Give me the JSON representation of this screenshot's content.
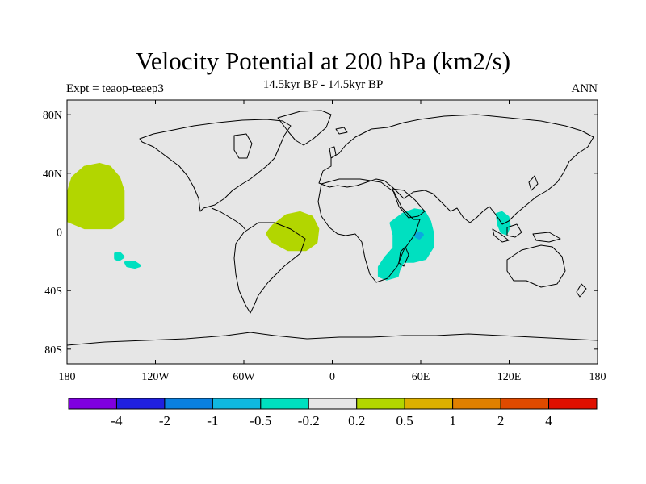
{
  "title": "Velocity Potential at 200 hPa (km2/s)",
  "subtitle": "14.5kyr BP - 14.5kyr BP",
  "left_label": "Expt = teaop-teaep3",
  "right_label": "ANN",
  "map": {
    "projection": "cylindrical-equidistant",
    "background_color": "#e6e6e6",
    "coastline_color": "#000000",
    "lon_range": [
      -180,
      180
    ],
    "lat_range": [
      -90,
      90
    ],
    "x_ticks": [
      {
        "value": -180,
        "label": "180"
      },
      {
        "value": -120,
        "label": "120W"
      },
      {
        "value": -60,
        "label": "60W"
      },
      {
        "value": 0,
        "label": "0"
      },
      {
        "value": 60,
        "label": "60E"
      },
      {
        "value": 120,
        "label": "120E"
      },
      {
        "value": 180,
        "label": "180"
      }
    ],
    "y_ticks": [
      {
        "value": 80,
        "label": "80N"
      },
      {
        "value": 40,
        "label": "40N"
      },
      {
        "value": 0,
        "label": "0"
      },
      {
        "value": -40,
        "label": "40S"
      },
      {
        "value": -80,
        "label": "80S"
      }
    ],
    "anomalies": [
      {
        "name": "north-pacific-positive",
        "color": "#b2d600",
        "points": [
          [
            -176,
            37
          ],
          [
            -168,
            44
          ],
          [
            -158,
            46
          ],
          [
            -151,
            44
          ],
          [
            -145,
            37
          ],
          [
            -142,
            28
          ],
          [
            -142,
            9
          ],
          [
            -150,
            3
          ],
          [
            -168,
            3
          ],
          [
            -180,
            8
          ],
          [
            -180,
            24
          ]
        ]
      },
      {
        "name": "atlantic-positive",
        "color": "#b2d600",
        "points": [
          [
            -40,
            4
          ],
          [
            -31,
            11
          ],
          [
            -22,
            13
          ],
          [
            -14,
            10
          ],
          [
            -10,
            2
          ],
          [
            -11,
            -7
          ],
          [
            -18,
            -12
          ],
          [
            -30,
            -12
          ],
          [
            -41,
            -6
          ],
          [
            -44,
            -1
          ]
        ]
      },
      {
        "name": "east-africa-negative",
        "color": "#00e0c0",
        "points": [
          [
            40,
            6
          ],
          [
            48,
            12
          ],
          [
            56,
            15
          ],
          [
            62,
            14
          ],
          [
            66,
            7
          ],
          [
            68,
            -1
          ],
          [
            68,
            -10
          ],
          [
            63,
            -18
          ],
          [
            55,
            -20
          ],
          [
            48,
            -20
          ],
          [
            45,
            -26
          ],
          [
            44,
            -30
          ],
          [
            37,
            -32
          ],
          [
            32,
            -30
          ],
          [
            32,
            -24
          ],
          [
            36,
            -18
          ],
          [
            42,
            -11
          ],
          [
            42,
            -2
          ]
        ]
      },
      {
        "name": "east-africa-core",
        "color": "#0aa8e0",
        "points": [
          [
            58,
            -1
          ],
          [
            60,
            -1
          ],
          [
            61,
            -2
          ],
          [
            59,
            -4
          ],
          [
            57,
            -3
          ]
        ]
      },
      {
        "name": "maritime-negative",
        "color": "#00e0c0",
        "points": [
          [
            112,
            12
          ],
          [
            115,
            13
          ],
          [
            119,
            10
          ],
          [
            120,
            4
          ],
          [
            118,
            -1
          ],
          [
            115,
            0
          ],
          [
            113,
            5
          ]
        ]
      },
      {
        "name": "south-pacific-spot-1",
        "color": "#00e0c0",
        "points": [
          [
            -147,
            -15
          ],
          [
            -144,
            -15
          ],
          [
            -142,
            -17
          ],
          [
            -145,
            -19
          ],
          [
            -147,
            -18
          ]
        ]
      },
      {
        "name": "south-pacific-spot-2",
        "color": "#00e0c0",
        "points": [
          [
            -140,
            -21
          ],
          [
            -134,
            -21
          ],
          [
            -131,
            -23
          ],
          [
            -134,
            -24
          ],
          [
            -139,
            -23
          ]
        ]
      }
    ]
  },
  "colorbar": {
    "colors": [
      "#7f00e0",
      "#2020e0",
      "#0a80e0",
      "#10b8e0",
      "#00e0c0",
      "#e6e6e6",
      "#b2d600",
      "#dcb000",
      "#e08000",
      "#e04a00",
      "#e01000"
    ],
    "labels": [
      "-4",
      "-2",
      "-1",
      "-0.5",
      "-0.2",
      "0.2",
      "0.5",
      "1",
      "2",
      "4"
    ]
  }
}
